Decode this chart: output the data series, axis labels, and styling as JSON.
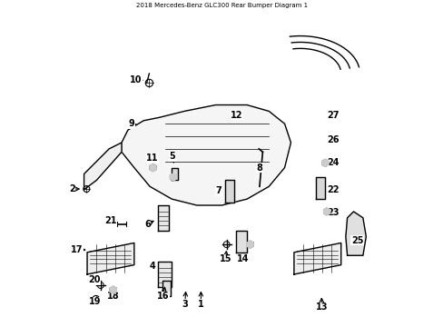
{
  "title": "2018 Mercedes-Benz GLC300 Rear Bumper Diagram 1",
  "bg_color": "#ffffff",
  "fig_width": 4.89,
  "fig_height": 3.6,
  "dpi": 100
}
